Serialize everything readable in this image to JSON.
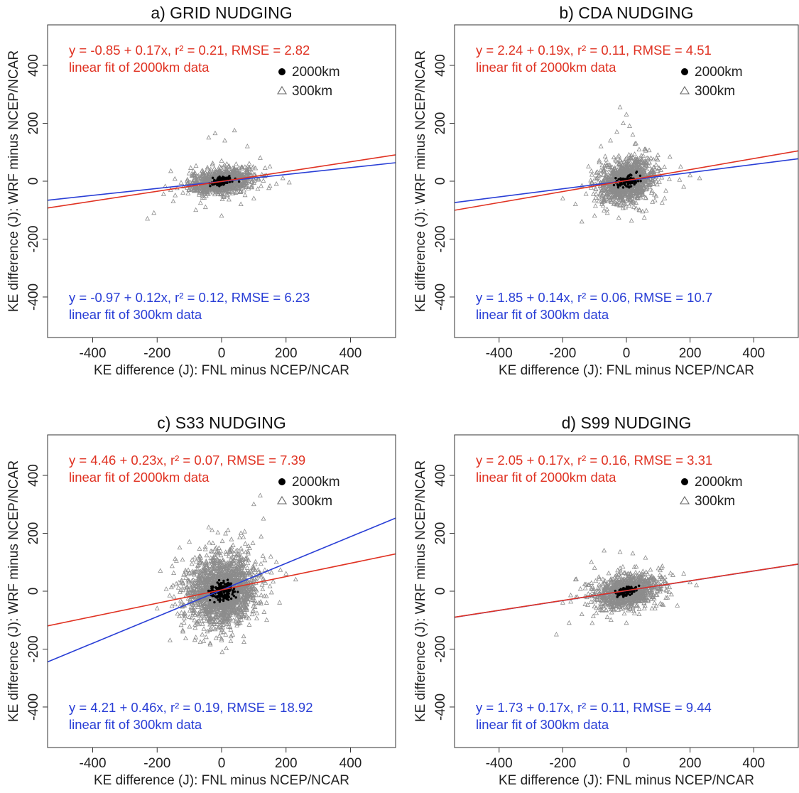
{
  "colors": {
    "fit_2000km": "#e03323",
    "fit_300km": "#2a3fd6",
    "points_300km": "#8c8c8c",
    "points_2000km": "#000000"
  },
  "legend": {
    "entries": [
      {
        "label": "2000km",
        "marker": "filled-circle"
      },
      {
        "label": "300km",
        "marker": "open-triangle"
      }
    ]
  },
  "chart_data": [
    {
      "type": "scatter",
      "title": "a) GRID NUDGING",
      "xlabel": "KE difference (J): FNL minus NCEP/NCAR",
      "ylabel": "KE difference (J): WRF minus NCEP/NCAR",
      "xlim": [
        -540,
        540
      ],
      "ylim": [
        -540,
        540
      ],
      "xticks": [
        "-400",
        "-200",
        "0",
        "200",
        "400"
      ],
      "yticks": [
        "-400",
        "-200",
        "0",
        "200",
        "400"
      ],
      "grid": false,
      "legend_position": "top-right",
      "fit_2000km": {
        "text": "y = -0.85 + 0.17x,  r² = 0.21,  RMSE = 2.82",
        "label": "linear fit of 2000km data",
        "intercept": -0.85,
        "slope": 0.17
      },
      "fit_300km": {
        "text": "y = -0.97 + 0.12x,  r² = 0.12,  RMSE = 6.23",
        "label": "linear fit of 300km data",
        "intercept": -0.97,
        "slope": 0.12
      },
      "cloud_300km": {
        "x_spread": 50,
        "y_spread": 22,
        "n": 900,
        "outliers": [
          [
            -230,
            -130
          ],
          [
            -210,
            -110
          ],
          [
            -150,
            -70
          ],
          [
            190,
            10
          ],
          [
            210,
            -5
          ],
          [
            -40,
            150
          ],
          [
            -20,
            165
          ],
          [
            10,
            140
          ],
          [
            40,
            175
          ],
          [
            80,
            120
          ],
          [
            120,
            80
          ],
          [
            150,
            50
          ],
          [
            -120,
            -40
          ],
          [
            -80,
            -100
          ],
          [
            60,
            -80
          ],
          [
            100,
            -60
          ],
          [
            -50,
            -90
          ],
          [
            0,
            -120
          ],
          [
            170,
            -10
          ],
          [
            -180,
            -45
          ]
        ]
      },
      "cloud_2000km": {
        "x_spread": 16,
        "y_spread": 7,
        "n": 110
      }
    },
    {
      "type": "scatter",
      "title": "b) CDA NUDGING",
      "xlabel": "KE difference (J): FNL minus NCEP/NCAR",
      "ylabel": "KE difference (J): WRF minus NCEP/NCAR",
      "xlim": [
        -540,
        540
      ],
      "ylim": [
        -540,
        540
      ],
      "xticks": [
        "-400",
        "-200",
        "0",
        "200",
        "400"
      ],
      "yticks": [
        "-400",
        "-200",
        "0",
        "200",
        "400"
      ],
      "grid": false,
      "legend_position": "top-right",
      "fit_2000km": {
        "text": "y = 2.24 + 0.19x,  r² = 0.11,  RMSE = 4.51",
        "label": "linear fit of 2000km data",
        "intercept": 2.24,
        "slope": 0.19
      },
      "fit_300km": {
        "text": "y = 1.85 + 0.14x,  r² = 0.06,  RMSE = 10.7",
        "label": "linear fit of 300km data",
        "intercept": 1.85,
        "slope": 0.14
      },
      "cloud_300km": {
        "x_spread": 45,
        "y_spread": 38,
        "n": 1100,
        "outliers": [
          [
            -20,
            255
          ],
          [
            0,
            230
          ],
          [
            -10,
            200
          ],
          [
            10,
            190
          ],
          [
            -30,
            170
          ],
          [
            20,
            160
          ],
          [
            -50,
            140
          ],
          [
            30,
            130
          ],
          [
            -140,
            -140
          ],
          [
            -100,
            -120
          ],
          [
            -60,
            -110
          ],
          [
            40,
            -100
          ],
          [
            200,
            20
          ],
          [
            230,
            10
          ],
          [
            180,
            -20
          ],
          [
            -200,
            -60
          ],
          [
            -160,
            -80
          ],
          [
            120,
            -60
          ],
          [
            -80,
            120
          ],
          [
            60,
            110
          ]
        ]
      },
      "cloud_2000km": {
        "x_spread": 16,
        "y_spread": 10,
        "n": 110
      }
    },
    {
      "type": "scatter",
      "title": "c) S33 NUDGING",
      "xlabel": "KE difference (J): FNL minus NCEP/NCAR",
      "ylabel": "KE difference (J): WRF minus NCEP/NCAR",
      "xlim": [
        -540,
        540
      ],
      "ylim": [
        -540,
        540
      ],
      "xticks": [
        "-400",
        "-200",
        "0",
        "200",
        "400"
      ],
      "yticks": [
        "-400",
        "-200",
        "0",
        "200",
        "400"
      ],
      "grid": false,
      "legend_position": "top-right",
      "fit_2000km": {
        "text": "y = 4.46 + 0.23x,  r² = 0.07,  RMSE = 7.39",
        "label": "linear fit of 2000km data",
        "intercept": 4.46,
        "slope": 0.23
      },
      "fit_300km": {
        "text": "y = 4.21 + 0.46x,  r² = 0.19,  RMSE = 18.92",
        "label": "linear fit of 300km data",
        "intercept": 4.21,
        "slope": 0.46
      },
      "cloud_300km": {
        "x_spread": 55,
        "y_spread": 62,
        "n": 1800,
        "outliers": [
          [
            120,
            330
          ],
          [
            100,
            300
          ],
          [
            130,
            250
          ],
          [
            -40,
            220
          ],
          [
            20,
            210
          ],
          [
            -100,
            170
          ],
          [
            60,
            200
          ],
          [
            -130,
            150
          ],
          [
            -160,
            -170
          ],
          [
            -120,
            -140
          ],
          [
            -60,
            -150
          ],
          [
            140,
            -100
          ],
          [
            200,
            60
          ],
          [
            230,
            40
          ],
          [
            -200,
            -60
          ],
          [
            170,
            100
          ],
          [
            -80,
            -160
          ],
          [
            0,
            -170
          ],
          [
            180,
            -40
          ],
          [
            -190,
            70
          ]
        ]
      },
      "cloud_2000km": {
        "x_spread": 17,
        "y_spread": 17,
        "n": 200
      }
    },
    {
      "type": "scatter",
      "title": "d) S99 NUDGING",
      "xlabel": "KE difference (J): FNL minus NCEP/NCAR",
      "ylabel": "KE difference (J): WRF minus NCEP/NCAR",
      "xlim": [
        -540,
        540
      ],
      "ylim": [
        -540,
        540
      ],
      "xticks": [
        "-400",
        "-200",
        "0",
        "200",
        "400"
      ],
      "yticks": [
        "-400",
        "-200",
        "0",
        "200",
        "400"
      ],
      "grid": false,
      "legend_position": "top-right",
      "fit_2000km": {
        "text": "y = 2.05 + 0.17x,  r² = 0.16,  RMSE = 3.31",
        "label": "linear fit of 2000km data",
        "intercept": 2.05,
        "slope": 0.17
      },
      "fit_300km": {
        "text": "y = 1.73 + 0.17x,  r² = 0.11,  RMSE = 9.44",
        "label": "linear fit of 300km data",
        "intercept": 1.73,
        "slope": 0.17
      },
      "cloud_300km": {
        "x_spread": 55,
        "y_spread": 30,
        "n": 1000,
        "outliers": [
          [
            -220,
            -150
          ],
          [
            -180,
            -110
          ],
          [
            -140,
            -80
          ],
          [
            -70,
            140
          ],
          [
            -20,
            135
          ],
          [
            20,
            130
          ],
          [
            60,
            115
          ],
          [
            -110,
            100
          ],
          [
            110,
            80
          ],
          [
            200,
            30
          ],
          [
            220,
            20
          ],
          [
            -200,
            -40
          ],
          [
            160,
            -50
          ],
          [
            -60,
            -90
          ],
          [
            40,
            -80
          ],
          [
            0,
            -110
          ],
          [
            -100,
            80
          ],
          [
            90,
            -60
          ],
          [
            180,
            60
          ],
          [
            -160,
            40
          ]
        ]
      },
      "cloud_2000km": {
        "x_spread": 16,
        "y_spread": 8,
        "n": 110
      }
    }
  ]
}
